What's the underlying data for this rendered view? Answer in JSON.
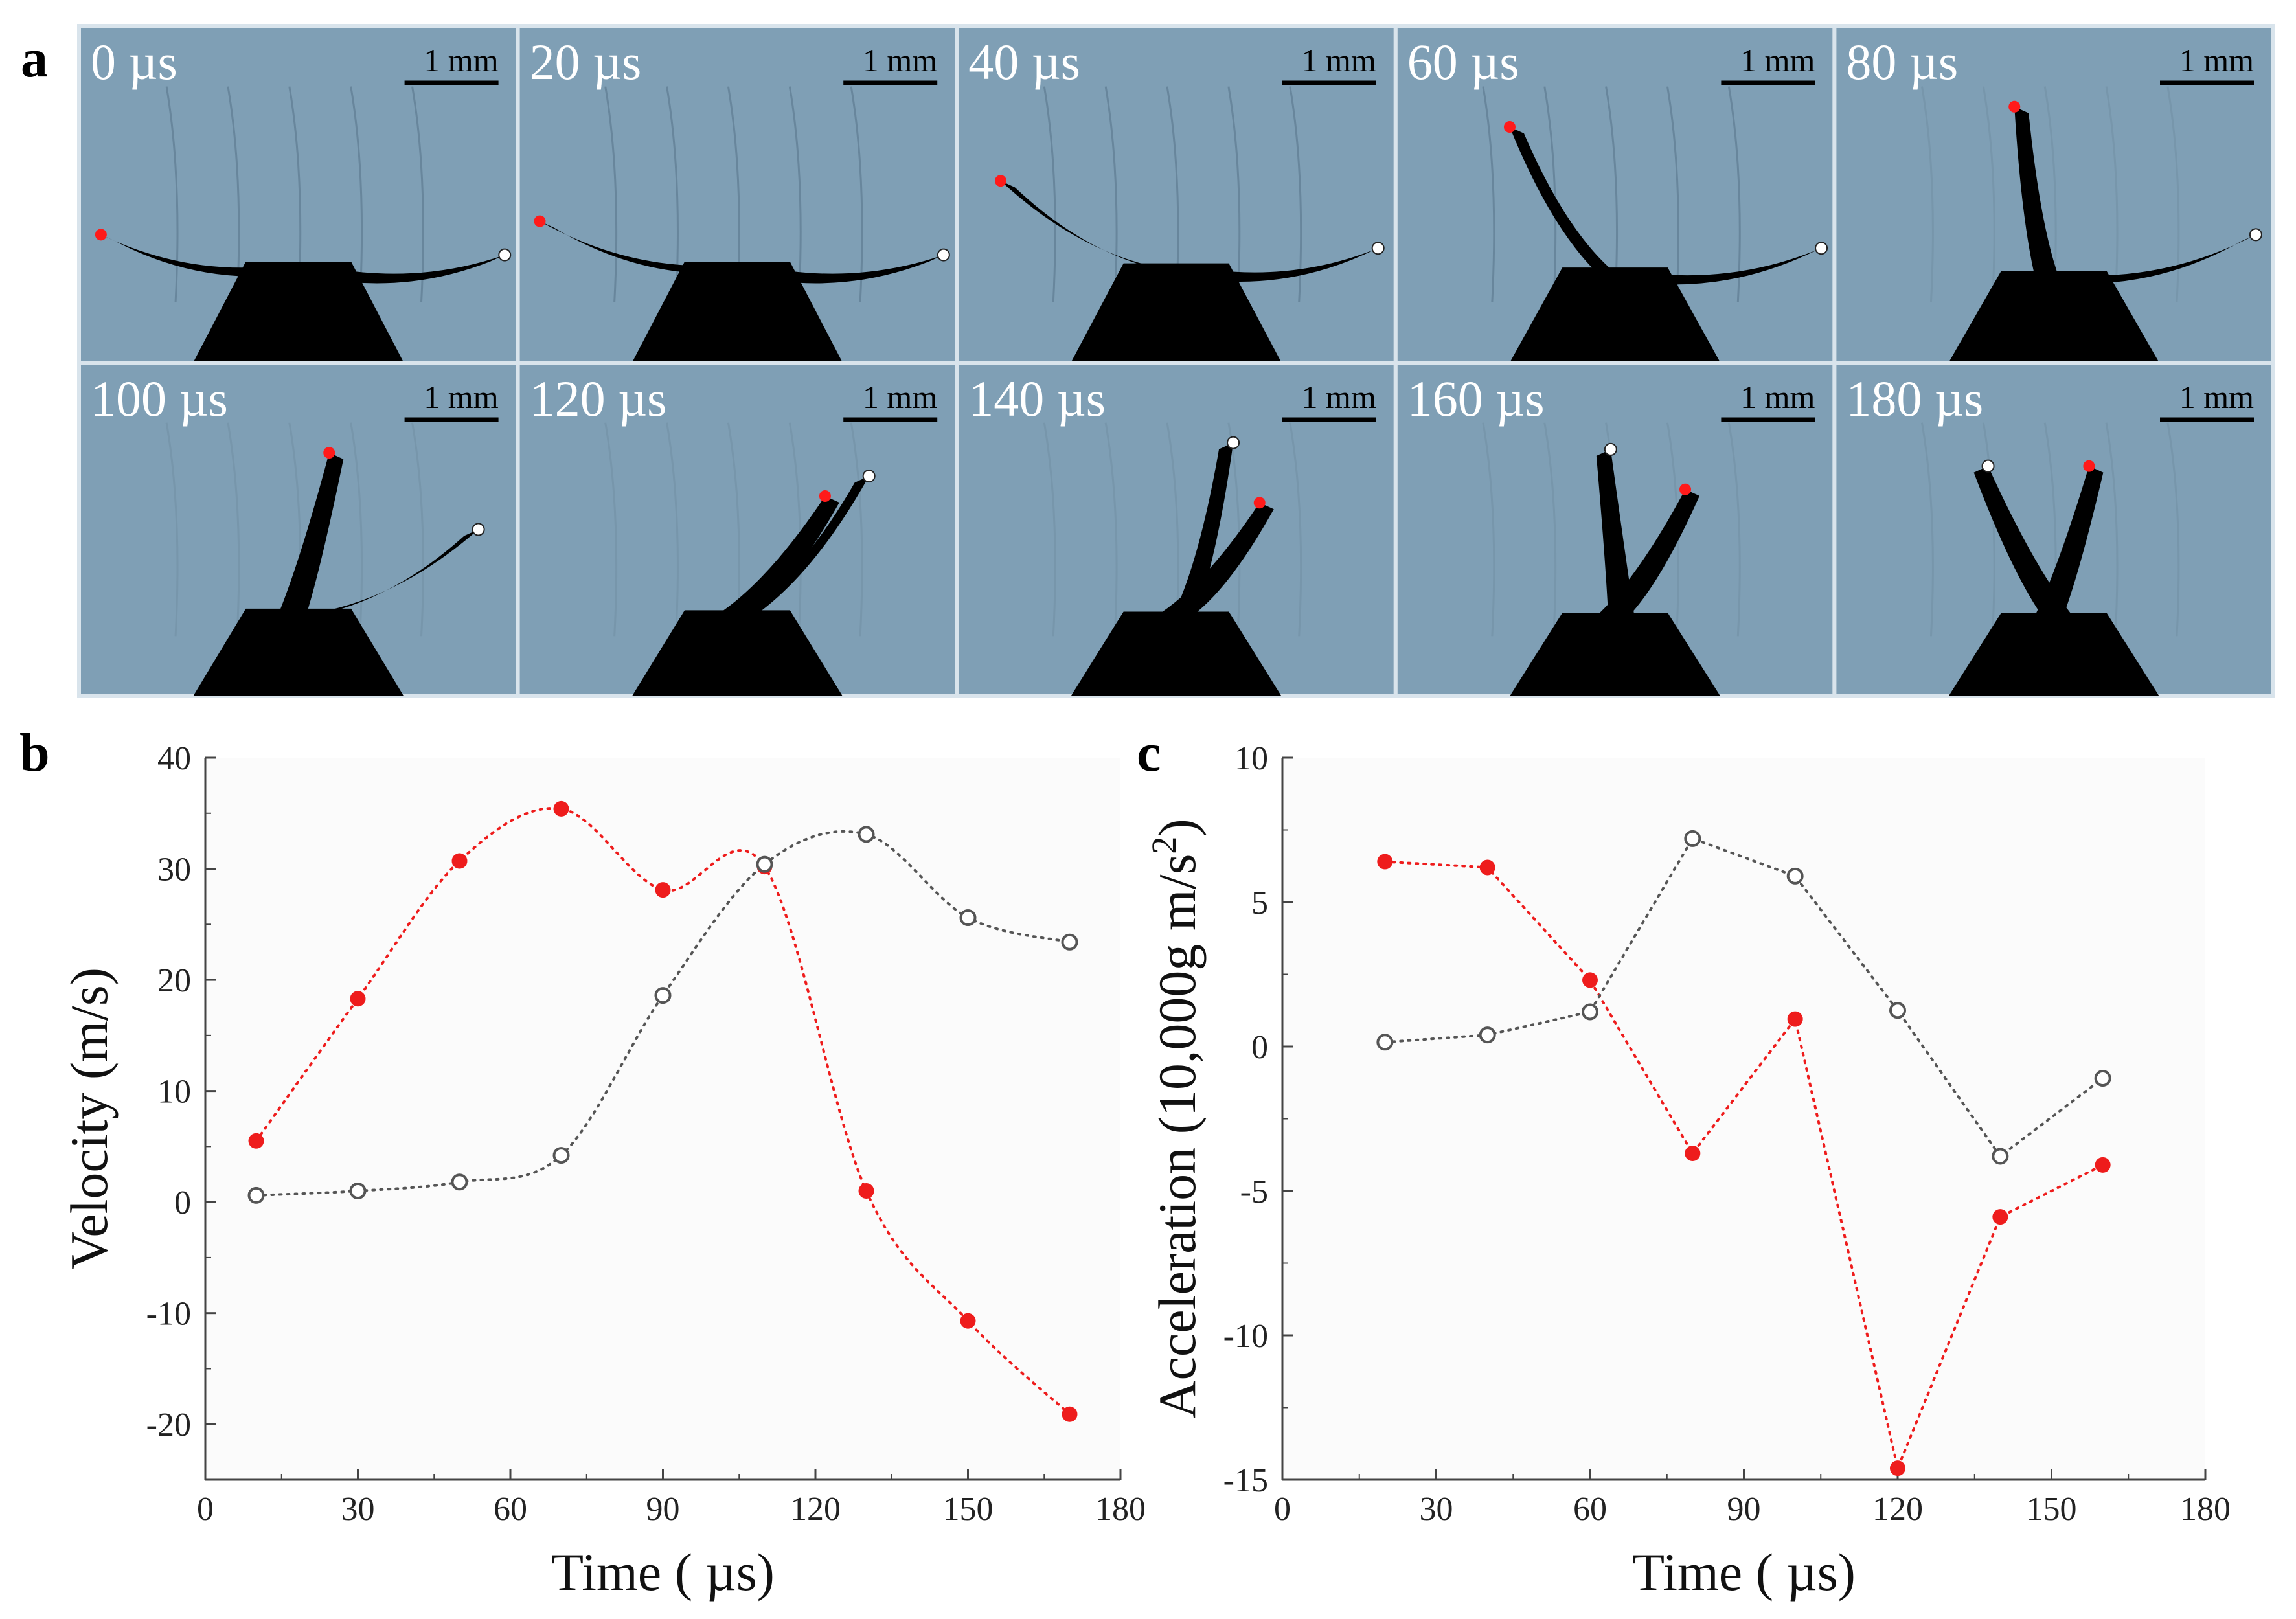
{
  "panels": {
    "a": {
      "letter": "a",
      "scale_bar_label": "1 mm",
      "frames": [
        "0 µs",
        "20 µs",
        "40 µs",
        "60 µs",
        "80 µs",
        "100 µs",
        "120 µs",
        "140 µs",
        "160 µs",
        "180 µs"
      ],
      "background_color": "#7f9fb5",
      "silhouette_color": "#000000"
    },
    "b": {
      "letter": "b"
    },
    "c": {
      "letter": "c"
    }
  },
  "chart_data": [
    {
      "type": "line",
      "xlabel": "Time ( µs)",
      "ylabel": "Velocity (m/s)",
      "xlim": [
        0,
        180
      ],
      "ylim": [
        -25,
        40
      ],
      "xticks": [
        0,
        30,
        60,
        90,
        120,
        150,
        180
      ],
      "yticks": [
        -20,
        -10,
        0,
        10,
        20,
        30,
        40
      ],
      "grid": false,
      "series": [
        {
          "marker": "filled-circle",
          "color": "#ee1c1c",
          "x": [
            10,
            30,
            50,
            70,
            90,
            110,
            130,
            150,
            170
          ],
          "values": [
            5.5,
            18.3,
            30.7,
            35.4,
            28.1,
            30.2,
            1.0,
            -10.7,
            -19.1
          ]
        },
        {
          "marker": "open-circle",
          "color": "#555555",
          "x": [
            10,
            30,
            50,
            70,
            90,
            110,
            130,
            150,
            170
          ],
          "values": [
            0.6,
            1.0,
            1.8,
            4.2,
            18.6,
            30.4,
            33.1,
            25.6,
            23.4
          ]
        }
      ]
    },
    {
      "type": "line",
      "xlabel": "Time ( µs)",
      "ylabel_main": "Acceleration (10,000g m/s",
      "ylabel_sup": "2",
      "ylabel_end": ")",
      "xlim": [
        0,
        180
      ],
      "ylim": [
        -15,
        10
      ],
      "xticks": [
        0,
        30,
        60,
        90,
        120,
        150,
        180
      ],
      "yticks": [
        -15,
        -10,
        -5,
        0,
        5,
        10
      ],
      "grid": false,
      "series": [
        {
          "marker": "filled-circle",
          "color": "#ee1c1c",
          "x": [
            20,
            40,
            60,
            80,
            100,
            120,
            140,
            160
          ],
          "values": [
            6.4,
            6.2,
            2.3,
            -3.7,
            0.95,
            -14.6,
            -5.9,
            -4.1
          ]
        },
        {
          "marker": "open-circle",
          "color": "#555555",
          "x": [
            20,
            40,
            60,
            80,
            100,
            120,
            140,
            160
          ],
          "values": [
            0.15,
            0.4,
            1.2,
            7.2,
            5.9,
            1.25,
            -3.8,
            -1.1
          ]
        }
      ]
    }
  ]
}
